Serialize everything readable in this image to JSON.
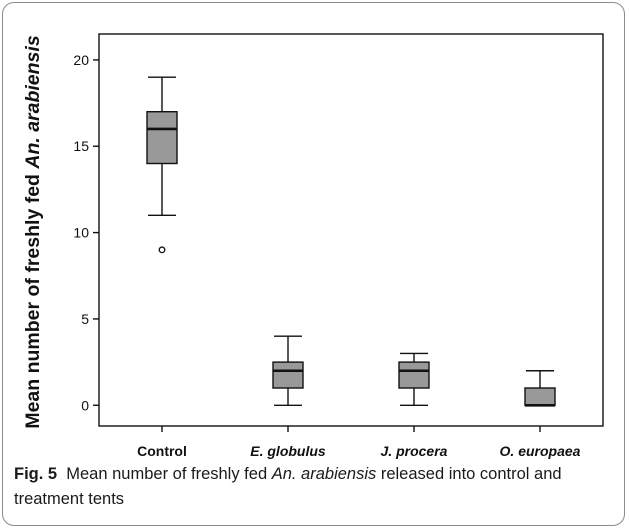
{
  "chart_data": {
    "type": "box",
    "ylabel_parts": [
      {
        "text": "Mean number of freshly fed ",
        "italic": false
      },
      {
        "text": "An. arabiensis",
        "italic": true
      }
    ],
    "ylim": [
      -1.2,
      21.5
    ],
    "yticks": [
      0,
      5,
      10,
      15,
      20
    ],
    "categories": [
      {
        "label": "Control",
        "italic": false
      },
      {
        "label": "E. globulus",
        "italic": true
      },
      {
        "label": "J. procera",
        "italic": true
      },
      {
        "label": "O. europaea",
        "italic": true
      }
    ],
    "boxes": [
      {
        "min": 11,
        "q1": 14,
        "median": 16,
        "q3": 17,
        "max": 19,
        "outliers": [
          9
        ]
      },
      {
        "min": 0,
        "q1": 1,
        "median": 2,
        "q3": 2.5,
        "max": 4,
        "outliers": []
      },
      {
        "min": 0,
        "q1": 1,
        "median": 2,
        "q3": 2.5,
        "max": 3,
        "outliers": []
      },
      {
        "min": 0,
        "q1": 0,
        "median": 0,
        "q3": 1,
        "max": 2,
        "outliers": []
      }
    ],
    "box_color": "#999999",
    "line_color": "#111111"
  },
  "caption": {
    "fig_label": "Fig. 5",
    "text_before": "Mean number of freshly fed ",
    "species": "An. arabiensis",
    "text_after": " released into control and treatment tents"
  }
}
